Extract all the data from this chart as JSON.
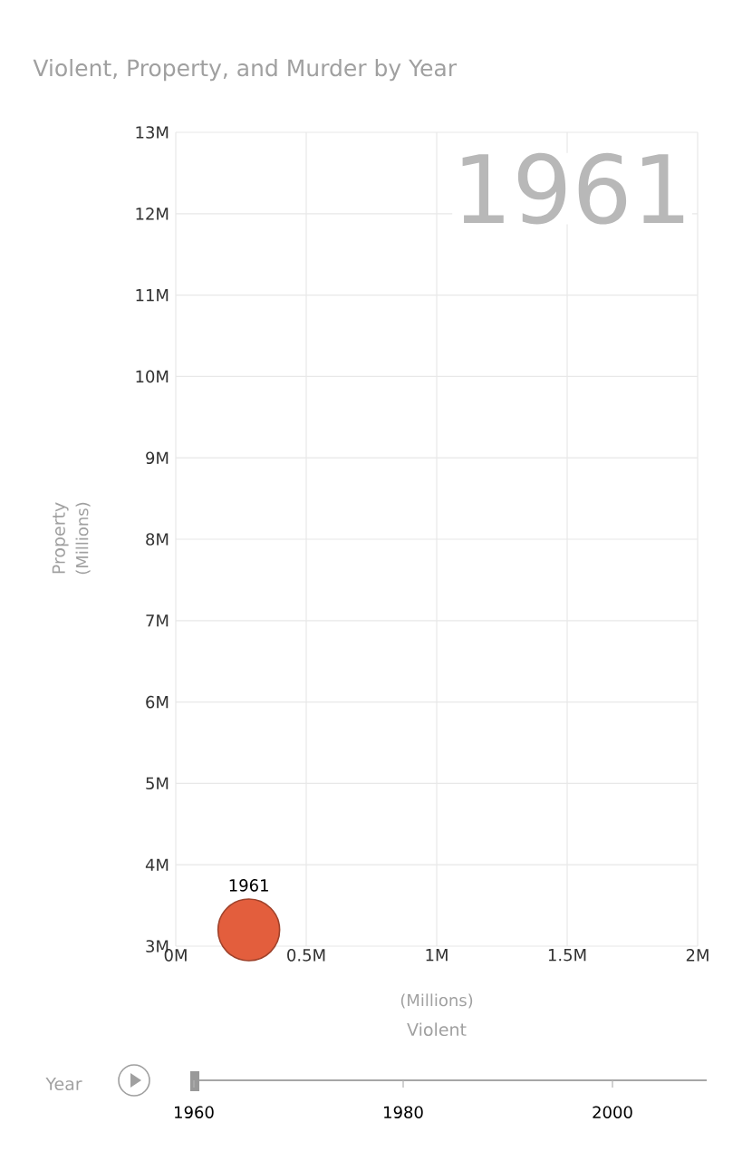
{
  "chart_data": {
    "type": "bubble",
    "title": "Violent, Property, and Murder by Year",
    "xlabel": "Violent",
    "ylabel": "Property",
    "x": [
      0.28
    ],
    "values": [
      3.2
    ],
    "sizes": [
      1
    ],
    "color": "#e35e3d",
    "xlim": [
      0,
      2
    ],
    "xticks": [
      {
        "value": 0,
        "label": "0M"
      },
      {
        "value": 0.5,
        "label": "0.5M"
      },
      {
        "value": 1,
        "label": "1M"
      },
      {
        "value": 1.5,
        "label": "1.5M"
      },
      {
        "value": 2,
        "label": "2M"
      }
    ],
    "ylim": [
      3,
      13
    ],
    "yticks": [
      {
        "value": 3,
        "label": "3M"
      },
      {
        "value": 4,
        "label": "4M"
      },
      {
        "value": 5,
        "label": "5M"
      },
      {
        "value": 6,
        "label": "6M"
      },
      {
        "value": 7,
        "label": "7M"
      },
      {
        "value": 8,
        "label": "8M"
      },
      {
        "value": 9,
        "label": "9M"
      },
      {
        "value": 10,
        "label": "10M"
      },
      {
        "value": 11,
        "label": "11M"
      },
      {
        "value": 12,
        "label": "12M"
      },
      {
        "value": 13,
        "label": "13M"
      }
    ],
    "grid": true,
    "annotations": [
      {
        "text": "1961",
        "x": 0.28,
        "y": 3.2
      },
      "1961",
      "(Millions)",
      "(Millions)",
      "Year",
      "1960",
      "1980",
      "2000"
    ]
  }
}
